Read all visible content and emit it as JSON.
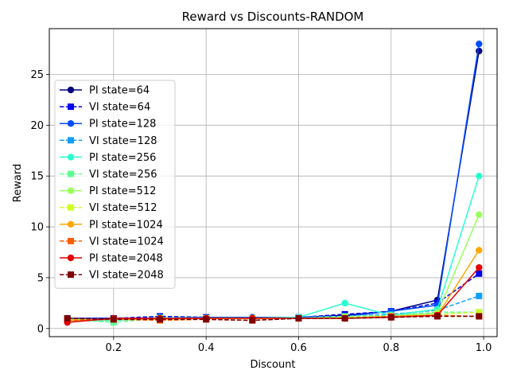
{
  "chart_data": {
    "type": "line",
    "title": "Reward vs Discounts-RANDOM",
    "xlabel": "Discount",
    "ylabel": "Reward",
    "xlim": [
      0.061,
      1.029
    ],
    "ylim": [
      -0.8,
      29.5
    ],
    "xticks": [
      0.2,
      0.4,
      0.6,
      0.8,
      1.0
    ],
    "xtick_labels": [
      "0.2",
      "0.4",
      "0.6",
      "0.8",
      "1.0"
    ],
    "yticks": [
      0,
      5,
      10,
      15,
      20,
      25
    ],
    "ytick_labels": [
      "0",
      "5",
      "10",
      "15",
      "20",
      "25"
    ],
    "grid": true,
    "legend_position": "upper-left",
    "x": [
      0.1,
      0.2,
      0.3,
      0.4,
      0.5,
      0.6,
      0.7,
      0.8,
      0.9,
      0.99
    ],
    "series": [
      {
        "name": "PI state=64",
        "color": "#00007f",
        "style": "solid",
        "marker": "circle",
        "values": [
          1.0,
          1.0,
          1.0,
          1.0,
          1.1,
          1.1,
          1.3,
          1.7,
          2.8,
          27.3
        ]
      },
      {
        "name": "VI state=64",
        "color": "#0000f1",
        "style": "dashed",
        "marker": "square",
        "values": [
          1.0,
          1.0,
          1.2,
          1.1,
          1.0,
          1.1,
          1.4,
          1.7,
          2.5,
          5.4
        ]
      },
      {
        "name": "PI state=128",
        "color": "#004cff",
        "style": "solid",
        "marker": "circle",
        "values": [
          0.9,
          0.9,
          1.0,
          1.1,
          1.1,
          1.1,
          1.2,
          1.7,
          2.3,
          28.0
        ]
      },
      {
        "name": "VI state=128",
        "color": "#0fa0ff",
        "style": "dashed",
        "marker": "square",
        "values": [
          1.0,
          0.8,
          1.1,
          1.0,
          1.0,
          1.1,
          1.2,
          1.4,
          1.8,
          3.2
        ]
      },
      {
        "name": "PI state=256",
        "color": "#29ffce",
        "style": "solid",
        "marker": "circle",
        "values": [
          0.8,
          0.8,
          1.0,
          1.0,
          1.0,
          1.1,
          2.5,
          1.3,
          1.9,
          15.0
        ]
      },
      {
        "name": "VI state=256",
        "color": "#60ff96",
        "style": "dashed",
        "marker": "square",
        "values": [
          0.9,
          0.6,
          1.0,
          1.0,
          1.0,
          1.0,
          1.2,
          1.3,
          1.6,
          1.6
        ]
      },
      {
        "name": "PI state=512",
        "color": "#9aff5c",
        "style": "solid",
        "marker": "circle",
        "values": [
          0.9,
          0.9,
          1.0,
          1.0,
          1.0,
          1.0,
          1.1,
          1.2,
          1.5,
          11.2
        ]
      },
      {
        "name": "VI state=512",
        "color": "#ceff29",
        "style": "dashed",
        "marker": "square",
        "values": [
          0.9,
          0.9,
          1.0,
          1.0,
          1.0,
          1.0,
          1.1,
          1.2,
          1.4,
          1.6
        ]
      },
      {
        "name": "PI state=1024",
        "color": "#ffa700",
        "style": "solid",
        "marker": "circle",
        "values": [
          0.8,
          0.9,
          0.9,
          1.0,
          1.0,
          1.0,
          1.0,
          1.2,
          1.3,
          7.7
        ]
      },
      {
        "name": "VI state=1024",
        "color": "#ff5e00",
        "style": "dashed",
        "marker": "square",
        "values": [
          0.8,
          0.9,
          0.8,
          0.9,
          0.8,
          1.0,
          1.0,
          1.2,
          1.3,
          1.2
        ]
      },
      {
        "name": "PI state=2048",
        "color": "#e30000",
        "style": "solid",
        "marker": "circle",
        "values": [
          0.6,
          1.0,
          1.0,
          1.0,
          1.0,
          1.0,
          1.0,
          1.1,
          1.3,
          6.0
        ]
      },
      {
        "name": "VI state=2048",
        "color": "#7f0000",
        "style": "dashed",
        "marker": "square",
        "values": [
          1.0,
          0.9,
          0.9,
          0.9,
          0.8,
          1.0,
          1.0,
          1.1,
          1.2,
          1.2
        ]
      }
    ]
  }
}
